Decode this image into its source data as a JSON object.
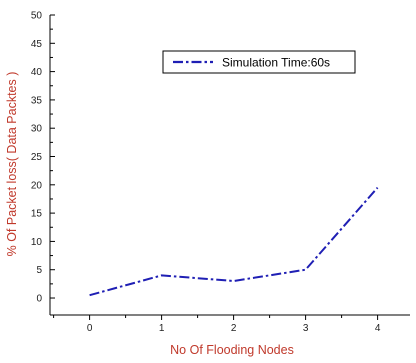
{
  "chart_data": {
    "type": "line",
    "title": "",
    "xlabel": "No Of Flooding Nodes",
    "ylabel": "% Of Packet loss( Data Packtes )",
    "x": [
      0,
      1,
      2,
      3,
      4
    ],
    "xlim": [
      -0.55,
      4.45
    ],
    "ylim": [
      -3,
      50
    ],
    "xticks": [
      "0",
      "1",
      "2",
      "3",
      "4"
    ],
    "yticks": [
      "0",
      "5",
      "10",
      "15",
      "20",
      "25",
      "30",
      "35",
      "40",
      "45",
      "50"
    ],
    "series": [
      {
        "name": "Simulation Time:60s",
        "values": [
          0.5,
          4,
          3,
          5,
          19.5
        ],
        "color": "#1f1fb4",
        "line_style": "dash-dot"
      }
    ],
    "legend_position": "upper-right",
    "grid": false,
    "axis_title_color": "#c0392b"
  }
}
